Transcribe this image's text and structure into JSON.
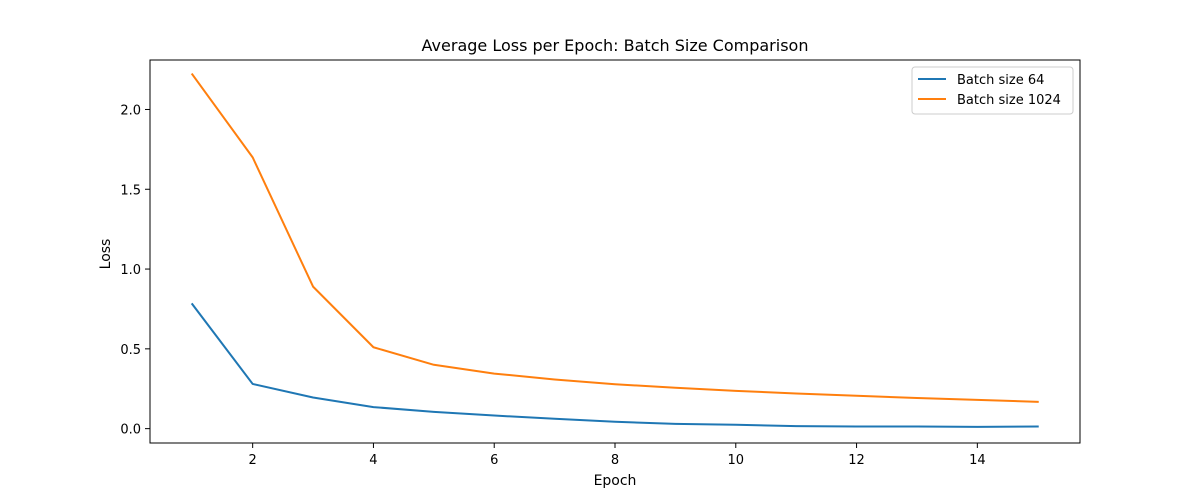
{
  "chart_data": {
    "type": "line",
    "title": "Average Loss per Epoch: Batch Size Comparison",
    "xlabel": "Epoch",
    "ylabel": "Loss",
    "x": [
      1,
      2,
      3,
      4,
      5,
      6,
      7,
      8,
      9,
      10,
      11,
      12,
      13,
      14,
      15
    ],
    "xlim": [
      0.3,
      15.7
    ],
    "ylim": [
      -0.09,
      2.31
    ],
    "xticks": [
      2,
      4,
      6,
      8,
      10,
      12,
      14
    ],
    "xtick_labels": [
      "2",
      "4",
      "6",
      "8",
      "10",
      "12",
      "14"
    ],
    "yticks": [
      0.0,
      0.5,
      1.0,
      1.5,
      2.0
    ],
    "ytick_labels": [
      "0.0",
      "0.5",
      "1.0",
      "1.5",
      "2.0"
    ],
    "grid": false,
    "legend_position": "top-right",
    "series": [
      {
        "name": "Batch size 64",
        "color": "#1f77b4",
        "values": [
          0.78,
          0.28,
          0.195,
          0.135,
          0.105,
          0.082,
          0.062,
          0.043,
          0.03,
          0.024,
          0.016,
          0.013,
          0.013,
          0.011,
          0.013
        ]
      },
      {
        "name": "Batch size 1024",
        "color": "#ff7f0e",
        "values": [
          2.22,
          1.7,
          0.89,
          0.51,
          0.4,
          0.345,
          0.308,
          0.278,
          0.256,
          0.237,
          0.22,
          0.206,
          0.192,
          0.18,
          0.168
        ]
      }
    ]
  }
}
